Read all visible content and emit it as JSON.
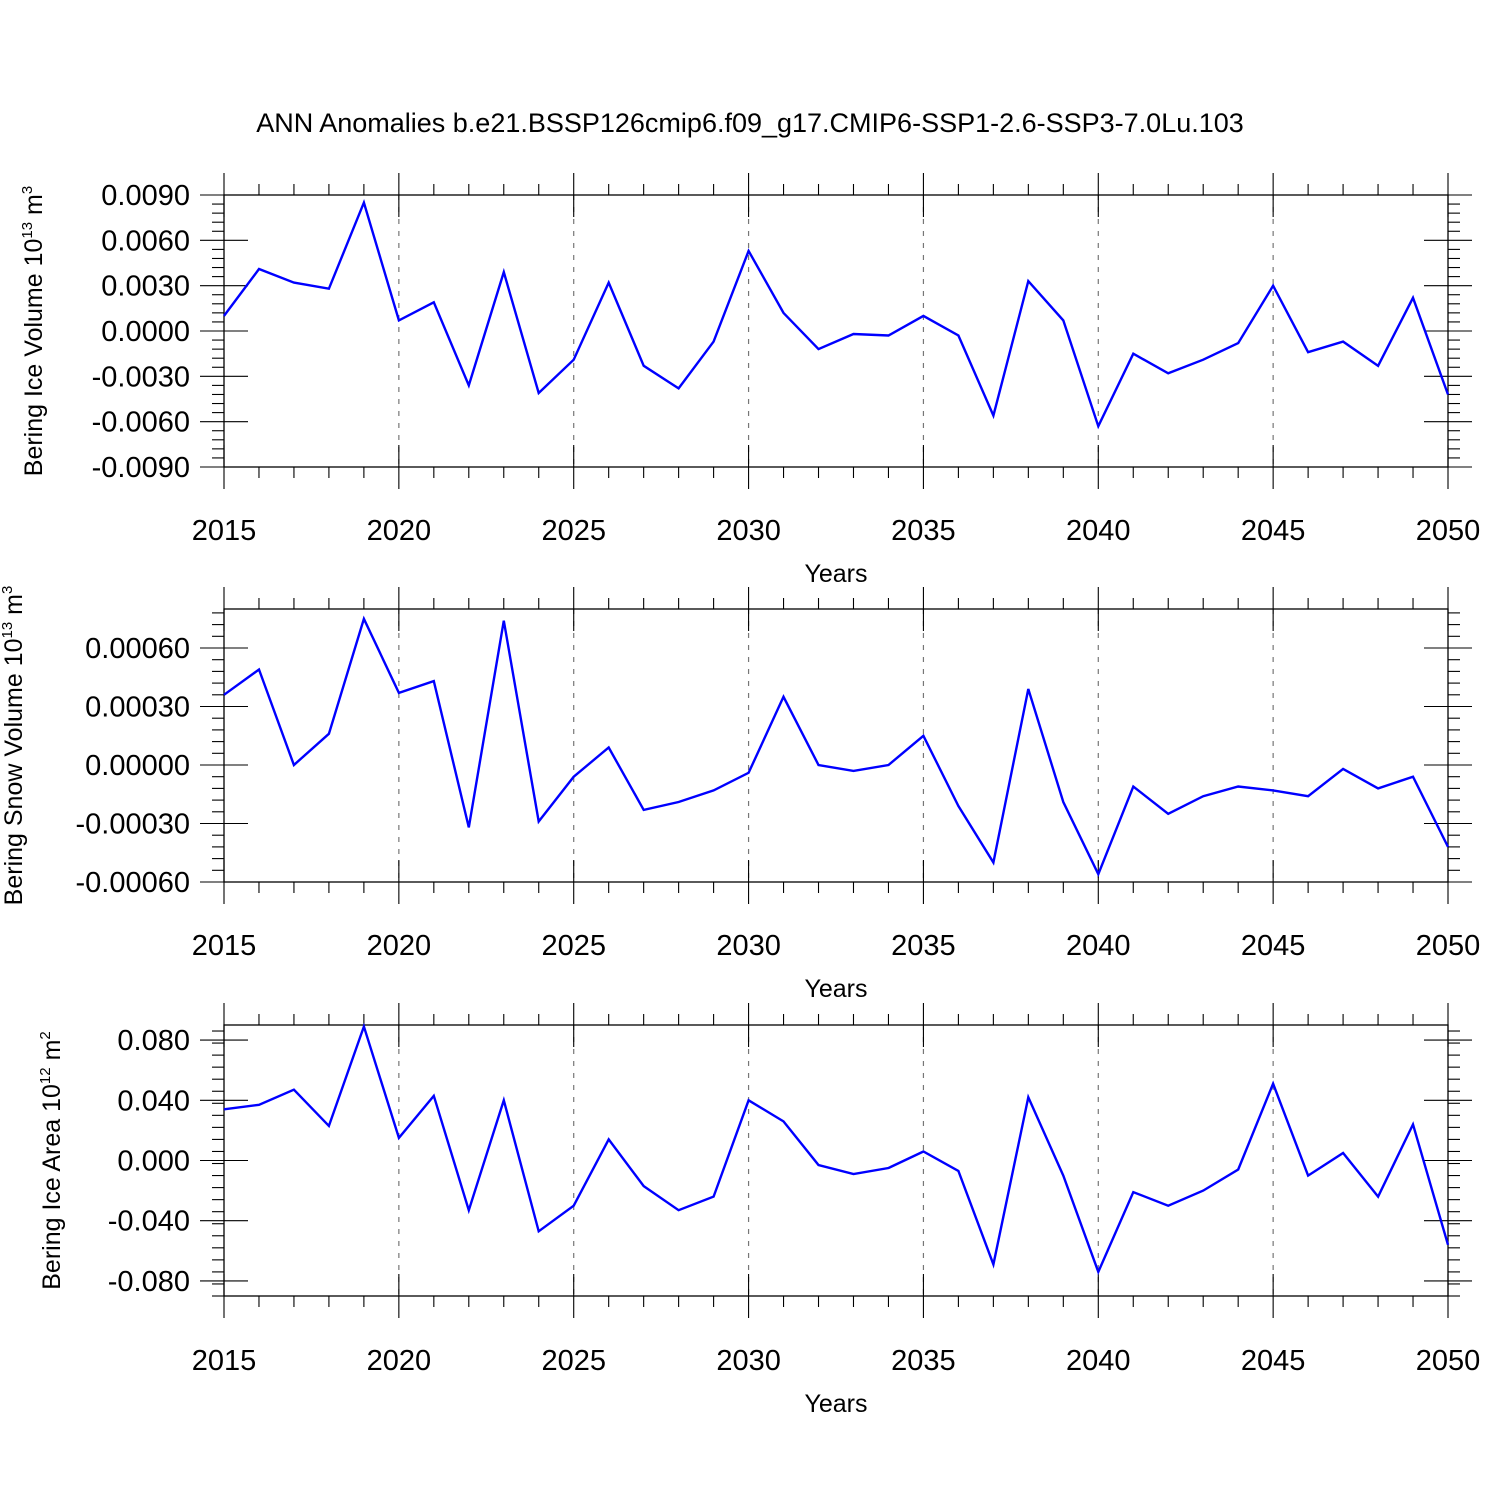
{
  "title": "ANN Anomalies b.e21.BSSP126cmip6.f09_g17.CMIP6-SSP1-2.6-SSP3-7.0Lu.103",
  "colors": {
    "series": "#0000ff",
    "axes": "#000000",
    "grid": "#777777"
  },
  "chart_data": [
    {
      "type": "line",
      "title": "",
      "xlabel": "Years",
      "ylabel": "Bering Ice Volume 10",
      "ylabel_exp": "13",
      "ylabel_unit": " m",
      "ylabel_unit_exp": "3",
      "xlim": [
        2015,
        2050
      ],
      "ylim": [
        -0.009,
        0.009
      ],
      "xticks": [
        2015,
        2020,
        2025,
        2030,
        2035,
        2040,
        2045,
        2050
      ],
      "xtick_labels": [
        "2015",
        "2020",
        "2025",
        "2030",
        "2035",
        "2040",
        "2045",
        "2050"
      ],
      "yticks": [
        -0.009,
        -0.006,
        -0.003,
        0.0,
        0.003,
        0.006,
        0.009
      ],
      "ytick_labels": [
        "-0.0090",
        "-0.0060",
        "-0.0030",
        "0.0000",
        "0.0030",
        "0.0060",
        "0.0090"
      ],
      "grid": "vertical dashed at major x ticks",
      "x": [
        2015,
        2016,
        2017,
        2018,
        2019,
        2020,
        2021,
        2022,
        2023,
        2024,
        2025,
        2026,
        2027,
        2028,
        2029,
        2030,
        2031,
        2032,
        2033,
        2034,
        2035,
        2036,
        2037,
        2038,
        2039,
        2040,
        2041,
        2042,
        2043,
        2044,
        2045,
        2046,
        2047,
        2048,
        2049,
        2050
      ],
      "values": [
        0.001,
        0.0041,
        0.0032,
        0.0028,
        0.0085,
        0.0007,
        0.0019,
        -0.0036,
        0.0039,
        -0.0041,
        -0.0019,
        0.0032,
        -0.0023,
        -0.0038,
        -0.0007,
        0.0053,
        0.0012,
        -0.0012,
        -0.0002,
        -0.0003,
        0.001,
        -0.0003,
        -0.0056,
        0.0033,
        0.0007,
        -0.0063,
        -0.0015,
        -0.0028,
        -0.0019,
        -0.0008,
        0.003,
        -0.0014,
        -0.0007,
        -0.0023,
        0.0022,
        -0.0042
      ]
    },
    {
      "type": "line",
      "title": "",
      "xlabel": "Years",
      "ylabel": "Bering Snow Volume 10",
      "ylabel_exp": "13",
      "ylabel_unit": " m",
      "ylabel_unit_exp": "3",
      "xlim": [
        2015,
        2050
      ],
      "ylim": [
        -0.0006,
        0.0008
      ],
      "xticks": [
        2015,
        2020,
        2025,
        2030,
        2035,
        2040,
        2045,
        2050
      ],
      "xtick_labels": [
        "2015",
        "2020",
        "2025",
        "2030",
        "2035",
        "2040",
        "2045",
        "2050"
      ],
      "yticks": [
        -0.0006,
        -0.0003,
        0.0,
        0.0003,
        0.0006
      ],
      "ytick_labels": [
        "-0.00060",
        "-0.00030",
        "0.00000",
        "0.00030",
        "0.00060"
      ],
      "grid": "vertical dashed at major x ticks",
      "x": [
        2015,
        2016,
        2017,
        2018,
        2019,
        2020,
        2021,
        2022,
        2023,
        2024,
        2025,
        2026,
        2027,
        2028,
        2029,
        2030,
        2031,
        2032,
        2033,
        2034,
        2035,
        2036,
        2037,
        2038,
        2039,
        2040,
        2041,
        2042,
        2043,
        2044,
        2045,
        2046,
        2047,
        2048,
        2049,
        2050
      ],
      "values": [
        0.00036,
        0.00049,
        0.0,
        0.00016,
        0.00075,
        0.00037,
        0.00043,
        -0.00032,
        0.00074,
        -0.00029,
        -6e-05,
        9e-05,
        -0.00023,
        -0.00019,
        -0.00013,
        -4e-05,
        0.00035,
        0.0,
        -3e-05,
        0.0,
        0.00015,
        -0.00021,
        -0.0005,
        0.00039,
        -0.00019,
        -0.00056,
        -0.00011,
        -0.00025,
        -0.00016,
        -0.00011,
        -0.00013,
        -0.00016,
        -2e-05,
        -0.00012,
        -6e-05,
        -0.00042
      ]
    },
    {
      "type": "line",
      "title": "",
      "xlabel": "Years",
      "ylabel": "Bering Ice Area 10",
      "ylabel_exp": "12",
      "ylabel_unit": " m",
      "ylabel_unit_exp": "2",
      "xlim": [
        2015,
        2050
      ],
      "ylim": [
        -0.09,
        0.09
      ],
      "xticks": [
        2015,
        2020,
        2025,
        2030,
        2035,
        2040,
        2045,
        2050
      ],
      "xtick_labels": [
        "2015",
        "2020",
        "2025",
        "2030",
        "2035",
        "2040",
        "2045",
        "2050"
      ],
      "yticks": [
        -0.08,
        -0.04,
        0.0,
        0.04,
        0.08
      ],
      "ytick_labels": [
        "-0.080",
        "-0.040",
        "0.000",
        "0.040",
        "0.080"
      ],
      "grid": "vertical dashed at major x ticks",
      "x": [
        2015,
        2016,
        2017,
        2018,
        2019,
        2020,
        2021,
        2022,
        2023,
        2024,
        2025,
        2026,
        2027,
        2028,
        2029,
        2030,
        2031,
        2032,
        2033,
        2034,
        2035,
        2036,
        2037,
        2038,
        2039,
        2040,
        2041,
        2042,
        2043,
        2044,
        2045,
        2046,
        2047,
        2048,
        2049,
        2050
      ],
      "values": [
        0.034,
        0.037,
        0.047,
        0.023,
        0.089,
        0.015,
        0.043,
        -0.033,
        0.04,
        -0.047,
        -0.03,
        0.014,
        -0.017,
        -0.033,
        -0.024,
        0.04,
        0.026,
        -0.003,
        -0.009,
        -0.005,
        0.006,
        -0.007,
        -0.069,
        0.042,
        -0.01,
        -0.074,
        -0.021,
        -0.03,
        -0.02,
        -0.006,
        0.051,
        -0.01,
        0.005,
        -0.024,
        0.024,
        -0.056
      ]
    }
  ]
}
